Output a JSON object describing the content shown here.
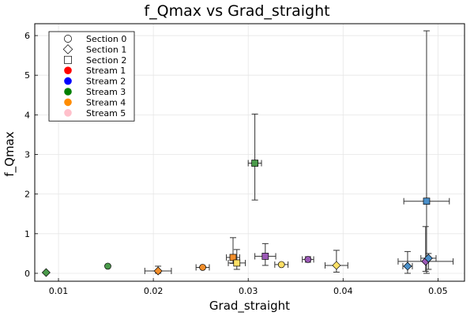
{
  "chart_data": {
    "type": "scatter",
    "title": "f_Qmax vs Grad_straight",
    "xlabel": "Grad_straight",
    "ylabel": "f_Qmax",
    "xlim": [
      0.0075,
      0.0528
    ],
    "ylim": [
      -0.2,
      6.3
    ],
    "xticks": [
      0.01,
      0.02,
      0.03,
      0.04,
      0.05
    ],
    "xtick_labels": [
      "0.01",
      "0.02",
      "0.03",
      "0.04",
      "0.05"
    ],
    "yticks": [
      0,
      1,
      2,
      3,
      4,
      5,
      6
    ],
    "ytick_labels": [
      "0",
      "1",
      "2",
      "3",
      "4",
      "5",
      "6"
    ],
    "grid": true,
    "legend_position": "top-left",
    "legend": [
      {
        "label": "Section 0",
        "kind": "section",
        "shape": "circle"
      },
      {
        "label": "Section 1",
        "kind": "section",
        "shape": "diamond"
      },
      {
        "label": "Section 2",
        "kind": "section",
        "shape": "square"
      },
      {
        "label": "Stream 1",
        "kind": "stream",
        "color": "#ff0000"
      },
      {
        "label": "Stream 2",
        "kind": "stream",
        "color": "#0000ff"
      },
      {
        "label": "Stream 3",
        "kind": "stream",
        "color": "#008000"
      },
      {
        "label": "Stream 4",
        "kind": "stream",
        "color": "#ff8c00"
      },
      {
        "label": "Stream 5",
        "kind": "stream",
        "color": "#ffc0cb"
      }
    ],
    "points": [
      {
        "x": 0.0087,
        "y": 0.02,
        "shape": "diamond",
        "color": "#4a9a4a",
        "xerr": null,
        "yerr": null
      },
      {
        "x": 0.0152,
        "y": 0.18,
        "shape": "circle",
        "color": "#4a9a4a",
        "xerr": null,
        "yerr": null
      },
      {
        "x": 0.0205,
        "y": 0.06,
        "shape": "diamond",
        "color": "#f28e2b",
        "xerr": [
          0.0191,
          0.0219
        ],
        "yerr": [
          0.0,
          0.18
        ]
      },
      {
        "x": 0.0252,
        "y": 0.15,
        "shape": "circle",
        "color": "#f28e2b",
        "xerr": [
          0.0245,
          0.0259
        ],
        "yerr": null
      },
      {
        "x": 0.0284,
        "y": 0.4,
        "shape": "square",
        "color": "#f28e2b",
        "xerr": [
          0.0277,
          0.0291
        ],
        "yerr": [
          0.25,
          0.9
        ]
      },
      {
        "x": 0.0288,
        "y": 0.26,
        "shape": "square",
        "color": "#ffe066",
        "xerr": [
          0.0279,
          0.0297
        ],
        "yerr": [
          0.1,
          0.6
        ]
      },
      {
        "x": 0.0307,
        "y": 2.78,
        "shape": "square",
        "color": "#4a9a4a",
        "xerr": [
          0.03,
          0.0314
        ],
        "yerr": [
          1.85,
          4.02
        ]
      },
      {
        "x": 0.0318,
        "y": 0.43,
        "shape": "square",
        "color": "#9b59b6",
        "xerr": [
          0.0307,
          0.0329
        ],
        "yerr": [
          0.2,
          0.75
        ]
      },
      {
        "x": 0.0335,
        "y": 0.22,
        "shape": "circle",
        "color": "#ffe066",
        "xerr": [
          0.0328,
          0.0342
        ],
        "yerr": null
      },
      {
        "x": 0.0363,
        "y": 0.35,
        "shape": "circle",
        "color": "#9b59b6",
        "xerr": [
          0.0357,
          0.0369
        ],
        "yerr": [
          0.28,
          0.42
        ]
      },
      {
        "x": 0.0393,
        "y": 0.2,
        "shape": "diamond",
        "color": "#ffe066",
        "xerr": [
          0.0381,
          0.0405
        ],
        "yerr": [
          0.03,
          0.58
        ]
      },
      {
        "x": 0.0468,
        "y": 0.18,
        "shape": "diamond",
        "color": "#4a8fc9",
        "xerr": [
          0.0463,
          0.0473
        ],
        "yerr": [
          0.0,
          0.55
        ]
      },
      {
        "x": 0.0488,
        "y": 1.82,
        "shape": "square",
        "color": "#4a8fc9",
        "xerr": [
          0.0464,
          0.0512
        ],
        "yerr": [
          0.0,
          6.12
        ]
      },
      {
        "x": 0.0487,
        "y": 0.3,
        "shape": "diamond",
        "color": "#9b59b6",
        "xerr": [
          0.0458,
          0.0516
        ],
        "yerr": [
          0.05,
          1.18
        ]
      },
      {
        "x": 0.049,
        "y": 0.38,
        "shape": "diamond",
        "color": "#4a8fc9",
        "xerr": [
          0.0482,
          0.0498
        ],
        "yerr": [
          0.1,
          0.5
        ]
      }
    ]
  }
}
